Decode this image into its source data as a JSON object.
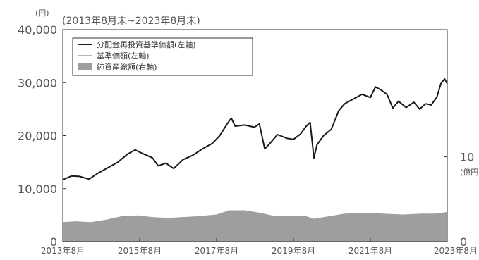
{
  "chart_data": {
    "type": "line",
    "subtitle": "(2013年8月末~2023年8月末)",
    "left_unit": "(円)",
    "right_unit": "(億円)",
    "x_tick_labels": [
      "2013年8月",
      "2015年8月",
      "2017年8月",
      "2019年8月",
      "2021年8月",
      "2023年8月"
    ],
    "x_ticks": [
      2013.667,
      2015.667,
      2017.667,
      2019.667,
      2021.667,
      2023.667
    ],
    "xlim": [
      2013.667,
      2023.667
    ],
    "y_left": {
      "lim": [
        0,
        40000
      ],
      "ticks": [
        0,
        10000,
        20000,
        30000,
        40000
      ],
      "tick_labels": [
        "0",
        "10,000",
        "20,000",
        "30,000",
        "40,000"
      ]
    },
    "y_right": {
      "lim": [
        0,
        25
      ],
      "ticks": [
        0,
        10
      ],
      "tick_labels": [
        "0",
        "10"
      ]
    },
    "legend": {
      "position": "top-left",
      "entries": [
        "分配金再投資基準価額(左軸)",
        "基準価額(左軸)",
        "純資産総額(右軸)"
      ]
    },
    "colors": {
      "nav_reinvested": "#1a1a1a",
      "nav": "#9a9a9a",
      "net_assets": "#9e9e9e",
      "frame": "#333333"
    },
    "grid": false,
    "series": [
      {
        "name": "分配金再投資基準価額(左軸)",
        "axis": "left",
        "style": "line",
        "points": [
          [
            2013.667,
            11700
          ],
          [
            2013.9,
            12400
          ],
          [
            2014.1,
            12300
          ],
          [
            2014.35,
            11800
          ],
          [
            2014.6,
            13000
          ],
          [
            2014.85,
            14000
          ],
          [
            2015.1,
            15000
          ],
          [
            2015.35,
            16500
          ],
          [
            2015.55,
            17300
          ],
          [
            2015.75,
            16600
          ],
          [
            2016.0,
            15800
          ],
          [
            2016.15,
            14300
          ],
          [
            2016.35,
            14800
          ],
          [
            2016.55,
            13800
          ],
          [
            2016.8,
            15500
          ],
          [
            2017.05,
            16300
          ],
          [
            2017.3,
            17500
          ],
          [
            2017.55,
            18500
          ],
          [
            2017.75,
            20000
          ],
          [
            2017.95,
            22300
          ],
          [
            2018.05,
            23300
          ],
          [
            2018.15,
            21800
          ],
          [
            2018.4,
            22000
          ],
          [
            2018.65,
            21600
          ],
          [
            2018.78,
            22200
          ],
          [
            2018.92,
            17500
          ],
          [
            2019.05,
            18500
          ],
          [
            2019.25,
            20200
          ],
          [
            2019.5,
            19500
          ],
          [
            2019.667,
            19300
          ],
          [
            2019.85,
            20300
          ],
          [
            2020.0,
            21800
          ],
          [
            2020.1,
            22500
          ],
          [
            2020.2,
            15800
          ],
          [
            2020.28,
            18300
          ],
          [
            2020.45,
            20000
          ],
          [
            2020.65,
            21200
          ],
          [
            2020.85,
            24800
          ],
          [
            2021.0,
            26000
          ],
          [
            2021.2,
            26800
          ],
          [
            2021.45,
            27800
          ],
          [
            2021.667,
            27200
          ],
          [
            2021.8,
            29200
          ],
          [
            2021.95,
            28600
          ],
          [
            2022.1,
            27800
          ],
          [
            2022.25,
            25200
          ],
          [
            2022.4,
            26500
          ],
          [
            2022.6,
            25300
          ],
          [
            2022.8,
            26300
          ],
          [
            2022.95,
            25000
          ],
          [
            2023.1,
            26000
          ],
          [
            2023.25,
            25800
          ],
          [
            2023.4,
            27300
          ],
          [
            2023.5,
            29800
          ],
          [
            2023.6,
            30700
          ],
          [
            2023.667,
            29800
          ]
        ]
      },
      {
        "name": "純資産総額(右軸)",
        "axis": "right",
        "style": "area",
        "points": [
          [
            2013.667,
            2.3
          ],
          [
            2014.0,
            2.4
          ],
          [
            2014.4,
            2.3
          ],
          [
            2014.8,
            2.6
          ],
          [
            2015.2,
            3.0
          ],
          [
            2015.6,
            3.1
          ],
          [
            2016.0,
            2.9
          ],
          [
            2016.4,
            2.8
          ],
          [
            2016.8,
            2.9
          ],
          [
            2017.2,
            3.0
          ],
          [
            2017.667,
            3.2
          ],
          [
            2018.0,
            3.7
          ],
          [
            2018.4,
            3.7
          ],
          [
            2018.8,
            3.4
          ],
          [
            2019.2,
            3.0
          ],
          [
            2019.667,
            3.0
          ],
          [
            2020.0,
            3.0
          ],
          [
            2020.2,
            2.7
          ],
          [
            2020.6,
            3.0
          ],
          [
            2021.0,
            3.3
          ],
          [
            2021.667,
            3.4
          ],
          [
            2022.0,
            3.3
          ],
          [
            2022.5,
            3.2
          ],
          [
            2023.0,
            3.3
          ],
          [
            2023.4,
            3.3
          ],
          [
            2023.667,
            3.5
          ]
        ]
      }
    ]
  }
}
